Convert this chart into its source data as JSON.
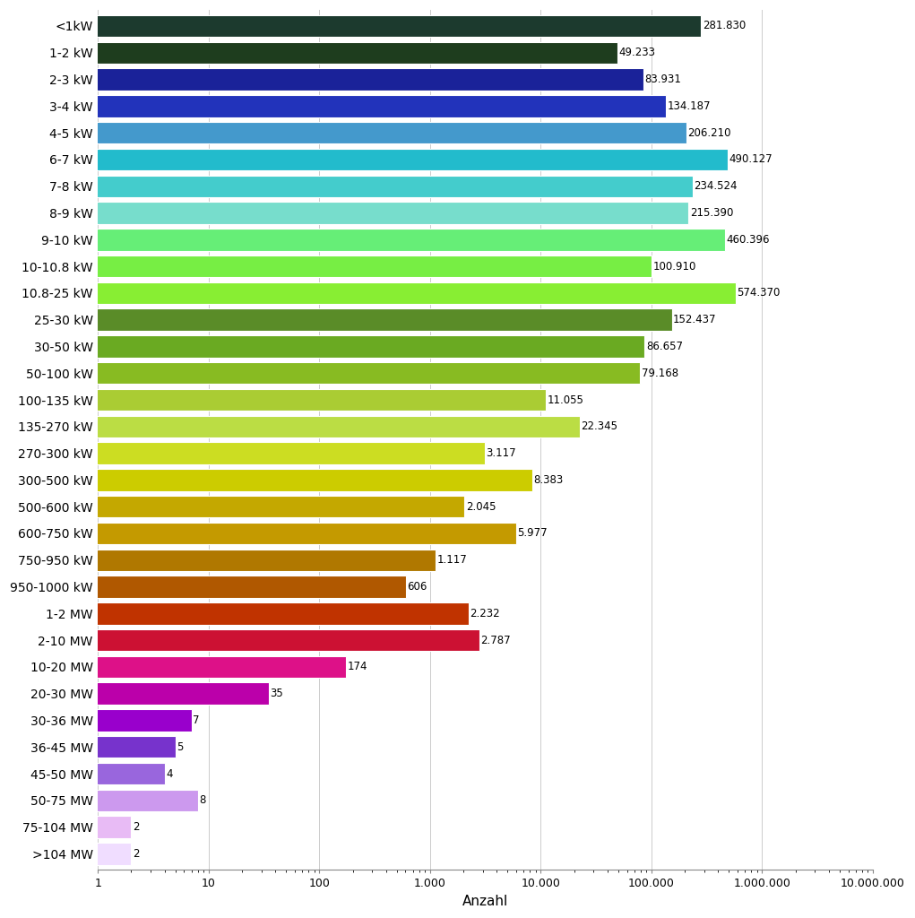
{
  "categories": [
    "<1kW",
    "1-2 kW",
    "2-3 kW",
    "3-4 kW",
    "4-5 kW",
    "6-7 kW",
    "7-8 kW",
    "8-9 kW",
    "9-10 kW",
    "10-10.8 kW",
    "10.8-25 kW",
    "25-30 kW",
    "30-50 kW",
    "50-100 kW",
    "100-135 kW",
    "135-270 kW",
    "270-300 kW",
    "300-500 kW",
    "500-600 kW",
    "600-750 kW",
    "750-950 kW",
    "950-1000 kW",
    "1-2 MW",
    "2-10 MW",
    "10-20 MW",
    "20-30 MW",
    "30-36 MW",
    "36-45 MW",
    "45-50 MW",
    "50-75 MW",
    "75-104 MW",
    ">104 MW"
  ],
  "values": [
    281830,
    49233,
    83931,
    134187,
    206210,
    490127,
    234524,
    215390,
    460396,
    100910,
    574370,
    152437,
    86657,
    79168,
    11055,
    22345,
    3117,
    8383,
    2045,
    5977,
    1117,
    606,
    2232,
    2787,
    174,
    35,
    7,
    5,
    4,
    8,
    2,
    2
  ],
  "labels": [
    "281.830",
    "49.233",
    "83.931",
    "134.187",
    "206.210",
    "490.127",
    "234.524",
    "215.390",
    "460.396",
    "100.910",
    "574.370",
    "152.437",
    "86.657",
    "79.168",
    "11.055",
    "22.345",
    "3.117",
    "8.383",
    "2.045",
    "5.977",
    "1.117",
    "606",
    "2.232",
    "2.787",
    "174",
    "35",
    "7",
    "5",
    "4",
    "8",
    "2",
    "2"
  ],
  "colors": [
    "#1c3a2e",
    "#1e3d1e",
    "#1a2299",
    "#2233bb",
    "#4499cc",
    "#22bbcc",
    "#44cccc",
    "#77ddcc",
    "#66ee77",
    "#77ee44",
    "#88ee33",
    "#5a8c28",
    "#6aaa22",
    "#88bb22",
    "#aacc33",
    "#bbdd44",
    "#ccdd22",
    "#cccc00",
    "#c4a800",
    "#c49a00",
    "#b07800",
    "#b05800",
    "#c03300",
    "#cc1133",
    "#dd1188",
    "#bb00aa",
    "#9900cc",
    "#7733cc",
    "#9966dd",
    "#cc99ee",
    "#e8bbf5",
    "#f0ddff"
  ],
  "xlabel": "Anzahl",
  "xlim_min": 1,
  "xlim_max": 10000000,
  "background_color": "#ffffff",
  "label_fontsize": 8.5,
  "ytick_fontsize": 10,
  "xlabel_fontsize": 11,
  "xtick_fontsize": 9,
  "bar_height": 0.82
}
